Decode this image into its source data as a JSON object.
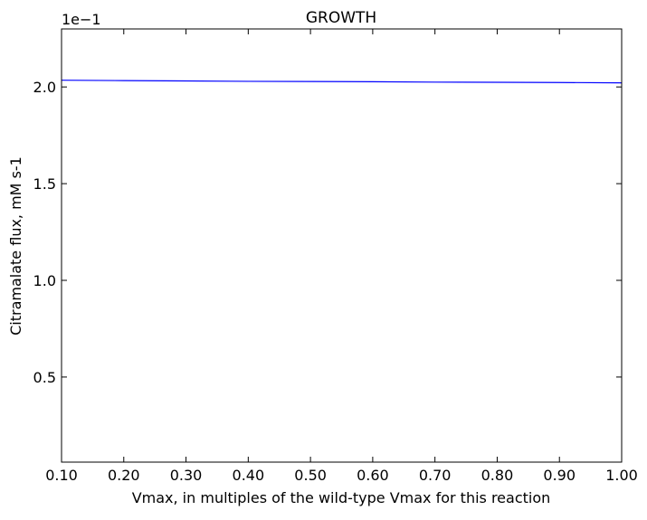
{
  "chart_data": {
    "type": "line",
    "title": "GROWTH",
    "xlabel": "Vmax, in multiples of the wild-type Vmax for this reaction",
    "ylabel": "Citramalate flux, mM s-1",
    "y_offset_label": "1e−1",
    "xlim": [
      0.1,
      1.0
    ],
    "ylim": [
      0.06,
      2.3
    ],
    "x_ticks": [
      0.1,
      0.2,
      0.3,
      0.4,
      0.5,
      0.6,
      0.7,
      0.8,
      0.9,
      1.0
    ],
    "x_tick_labels": [
      "0.10",
      "0.20",
      "0.30",
      "0.40",
      "0.50",
      "0.60",
      "0.70",
      "0.80",
      "0.90",
      "1.00"
    ],
    "y_ticks": [
      0.5,
      1.0,
      1.5,
      2.0
    ],
    "y_tick_labels": [
      "0.5",
      "1.0",
      "1.5",
      "2.0"
    ],
    "grid": false,
    "series": [
      {
        "color": "#0000ff",
        "x": [
          0.1,
          0.2,
          0.3,
          0.4,
          0.5,
          0.6,
          0.7,
          0.8,
          0.9,
          1.0
        ],
        "y": [
          2.035,
          2.033,
          2.031,
          2.029,
          2.028,
          2.027,
          2.025,
          2.024,
          2.023,
          2.021
        ]
      }
    ]
  }
}
